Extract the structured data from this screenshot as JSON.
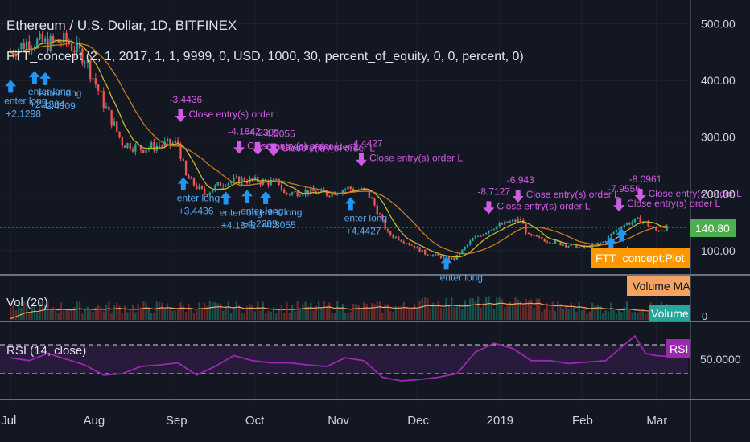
{
  "header": {
    "title": "Ethereum / U.S. Dollar, 1D, BITFINEX",
    "study": "FTT_concept (2, 1, 2017, 1, 1, 9999, 0, USD, 1000, 30, percent_of_equity, 0, 0, percent, 0)"
  },
  "volume_label": "Vol (20)",
  "rsi_label": "RSI (14, close)",
  "colors": {
    "background": "#131722",
    "up": "#26a69a",
    "down": "#ef5350",
    "ma_fast": "#c8b830",
    "ma_slow": "#c97a20",
    "rsi": "#9c27b0",
    "signal_text": "#d05ce3",
    "entry_arrow": "#2196f3",
    "last_price_line": "#4caf50",
    "plot_badge": "#ff9800"
  },
  "chart_data": [
    {
      "type": "candlestick",
      "name": "price",
      "y_axis_ticks": [
        "500.00",
        "400.00",
        "300.00",
        "200.00",
        "100.00"
      ],
      "ylim": [
        60,
        535
      ],
      "x_axis_ticks": [
        "Jul",
        "Aug",
        "Sep",
        "Oct",
        "Nov",
        "Dec",
        "2019",
        "Feb",
        "Mar"
      ],
      "last_price": "140.80",
      "close_series": [
        [
          "2018-07-01",
          450
        ],
        [
          "2018-07-08",
          470
        ],
        [
          "2018-07-15",
          465
        ],
        [
          "2018-07-22",
          470
        ],
        [
          "2018-07-29",
          440
        ],
        [
          "2018-08-05",
          360
        ],
        [
          "2018-08-12",
          290
        ],
        [
          "2018-08-19",
          280
        ],
        [
          "2018-08-26",
          285
        ],
        [
          "2018-09-02",
          290
        ],
        [
          "2018-09-05",
          230
        ],
        [
          "2018-09-12",
          200
        ],
        [
          "2018-09-19",
          220
        ],
        [
          "2018-09-26",
          225
        ],
        [
          "2018-10-03",
          222
        ],
        [
          "2018-10-10",
          220
        ],
        [
          "2018-10-12",
          200
        ],
        [
          "2018-10-20",
          205
        ],
        [
          "2018-10-28",
          200
        ],
        [
          "2018-11-05",
          210
        ],
        [
          "2018-11-12",
          205
        ],
        [
          "2018-11-15",
          180
        ],
        [
          "2018-11-20",
          130
        ],
        [
          "2018-11-27",
          115
        ],
        [
          "2018-12-04",
          95
        ],
        [
          "2018-12-11",
          88
        ],
        [
          "2018-12-15",
          85
        ],
        [
          "2018-12-22",
          120
        ],
        [
          "2018-12-29",
          140
        ],
        [
          "2019-01-05",
          150
        ],
        [
          "2019-01-09",
          155
        ],
        [
          "2019-01-12",
          125
        ],
        [
          "2019-01-19",
          118
        ],
        [
          "2019-01-26",
          110
        ],
        [
          "2019-02-02",
          105
        ],
        [
          "2019-02-09",
          115
        ],
        [
          "2019-02-16",
          145
        ],
        [
          "2019-02-23",
          155
        ],
        [
          "2019-03-01",
          135
        ],
        [
          "2019-03-05",
          140
        ]
      ],
      "signals": [
        {
          "kind": "entry",
          "label": "enter long",
          "value": "+2.1298",
          "date": "2018-07-01"
        },
        {
          "kind": "entry",
          "label": "enter long",
          "value": "+2.1304",
          "date": "2018-07-10"
        },
        {
          "kind": "entry",
          "label": "enter long",
          "value": "+2.4309",
          "date": "2018-07-14"
        },
        {
          "kind": "exit",
          "label": "Close entry(s) order L",
          "value": "-3.4436",
          "date": "2018-09-03"
        },
        {
          "kind": "entry",
          "label": "enter long",
          "value": "+3.4436",
          "date": "2018-09-04"
        },
        {
          "kind": "exit",
          "label": "Close entry(s) order L",
          "value": "-4.1842",
          "date": "2018-09-25"
        },
        {
          "kind": "exit",
          "label": "Close entry(s) order L",
          "value": "-4.2309",
          "date": "2018-10-02"
        },
        {
          "kind": "exit",
          "label": "Close entry(s) order L",
          "value": "-4.3055",
          "date": "2018-10-08"
        },
        {
          "kind": "entry",
          "label": "enter long",
          "value": "+4.1842",
          "date": "2018-09-20"
        },
        {
          "kind": "entry",
          "label": "enter long",
          "value": "+4.2309",
          "date": "2018-09-28"
        },
        {
          "kind": "entry",
          "label": "enter long",
          "value": "+4.3055",
          "date": "2018-10-05"
        },
        {
          "kind": "exit",
          "label": "Close entry(s) order L",
          "value": "-4.4427",
          "date": "2018-11-10"
        },
        {
          "kind": "entry",
          "label": "enter long",
          "value": "+4.4427",
          "date": "2018-11-06"
        },
        {
          "kind": "exit",
          "label": "Close entry(s) order L",
          "value": "-8.7127",
          "date": "2018-12-28"
        },
        {
          "kind": "exit",
          "label": "Close entry(s) order L",
          "value": "-6.943",
          "date": "2019-01-08"
        },
        {
          "kind": "entry",
          "label": "enter long",
          "value": "",
          "date": "2018-12-12"
        },
        {
          "kind": "exit",
          "label": "Close entry(s) order L",
          "value": "-7.9556",
          "date": "2019-02-15"
        },
        {
          "kind": "exit",
          "label": "Close entry(s) order L",
          "value": "-8.0961",
          "date": "2019-02-23"
        },
        {
          "kind": "entry",
          "label": "enter long",
          "value": "",
          "date": "2019-02-12"
        },
        {
          "kind": "entry",
          "label": "enter long",
          "value": "",
          "date": "2019-02-16"
        }
      ],
      "legend": [
        "FTT_concept:Plot"
      ]
    },
    {
      "type": "bar",
      "name": "volume",
      "legend": [
        "Volume MA",
        "Volume"
      ]
    },
    {
      "type": "line",
      "name": "rsi",
      "y_axis_ticks": [
        "50.0000"
      ],
      "ylim": [
        0,
        100
      ],
      "bands": [
        30,
        70
      ],
      "legend": [
        "RSI"
      ],
      "values": [
        [
          "2018-07-01",
          52
        ],
        [
          "2018-07-08",
          48
        ],
        [
          "2018-07-15",
          58
        ],
        [
          "2018-07-22",
          50
        ],
        [
          "2018-07-29",
          42
        ],
        [
          "2018-08-05",
          28
        ],
        [
          "2018-08-12",
          30
        ],
        [
          "2018-08-19",
          40
        ],
        [
          "2018-08-26",
          42
        ],
        [
          "2018-09-02",
          45
        ],
        [
          "2018-09-09",
          28
        ],
        [
          "2018-09-16",
          40
        ],
        [
          "2018-09-23",
          55
        ],
        [
          "2018-09-30",
          48
        ],
        [
          "2018-10-07",
          45
        ],
        [
          "2018-10-14",
          45
        ],
        [
          "2018-10-21",
          42
        ],
        [
          "2018-10-28",
          40
        ],
        [
          "2018-11-04",
          52
        ],
        [
          "2018-11-11",
          48
        ],
        [
          "2018-11-18",
          25
        ],
        [
          "2018-11-25",
          20
        ],
        [
          "2018-12-02",
          22
        ],
        [
          "2018-12-09",
          25
        ],
        [
          "2018-12-16",
          30
        ],
        [
          "2018-12-23",
          60
        ],
        [
          "2018-12-30",
          72
        ],
        [
          "2019-01-06",
          65
        ],
        [
          "2019-01-13",
          48
        ],
        [
          "2019-01-20",
          48
        ],
        [
          "2019-01-27",
          44
        ],
        [
          "2019-02-03",
          46
        ],
        [
          "2019-02-10",
          48
        ],
        [
          "2019-02-17",
          70
        ],
        [
          "2019-02-21",
          82
        ],
        [
          "2019-02-25",
          58
        ],
        [
          "2019-03-01",
          55
        ],
        [
          "2019-03-05",
          54
        ]
      ]
    }
  ]
}
